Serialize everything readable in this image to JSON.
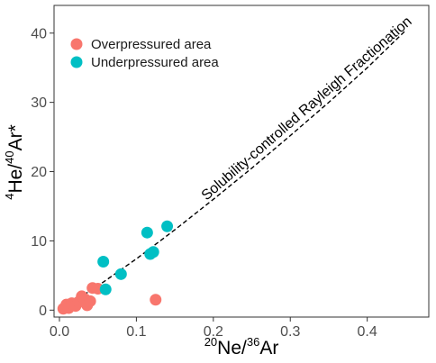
{
  "chart_data": {
    "type": "scatter",
    "xlabel": {
      "sup1": "20",
      "base1": "Ne/",
      "sup2": "36",
      "base2": "Ar"
    },
    "ylabel": {
      "sup1": "4",
      "base1": "He/",
      "sup2": "40",
      "base2": "Ar*"
    },
    "xlim": [
      -0.007,
      0.48
    ],
    "ylim": [
      -1.0,
      44.0
    ],
    "xticks": [
      0.0,
      0.1,
      0.2,
      0.3,
      0.4
    ],
    "xtick_labels": [
      "0.0",
      "0.1",
      "0.2",
      "0.3",
      "0.4"
    ],
    "yticks": [
      0,
      10,
      20,
      30,
      40
    ],
    "ytick_labels": [
      "0",
      "10",
      "20",
      "30",
      "40"
    ],
    "grid": false,
    "legend_position": "top-left",
    "series": [
      {
        "name": "Overpressured area",
        "color": "#F8766D",
        "points": [
          [
            0.005,
            0.2
          ],
          [
            0.009,
            0.8
          ],
          [
            0.012,
            0.3
          ],
          [
            0.016,
            1.0
          ],
          [
            0.021,
            0.6
          ],
          [
            0.025,
            1.2
          ],
          [
            0.029,
            2.0
          ],
          [
            0.033,
            1.6
          ],
          [
            0.036,
            0.7
          ],
          [
            0.04,
            1.3
          ],
          [
            0.043,
            3.2
          ],
          [
            0.05,
            3.1
          ],
          [
            0.125,
            1.5
          ]
        ]
      },
      {
        "name": "Underpressured area",
        "color": "#00BFC4",
        "points": [
          [
            0.057,
            7.0
          ],
          [
            0.06,
            3.0
          ],
          [
            0.08,
            5.2
          ],
          [
            0.114,
            11.2
          ],
          [
            0.118,
            8.1
          ],
          [
            0.122,
            8.4
          ],
          [
            0.14,
            12.1
          ]
        ]
      }
    ],
    "fit_line": {
      "label": "Solubility-controlled Rayleigh Fractionation",
      "style": "dashed",
      "color": "#000000",
      "points": [
        [
          0.0,
          0.0
        ],
        [
          0.05,
          3.5
        ],
        [
          0.1,
          7.4
        ],
        [
          0.15,
          11.6
        ],
        [
          0.2,
          16.0
        ],
        [
          0.25,
          20.5
        ],
        [
          0.3,
          25.2
        ],
        [
          0.35,
          30.0
        ],
        [
          0.4,
          35.0
        ],
        [
          0.45,
          40.4
        ]
      ]
    }
  }
}
